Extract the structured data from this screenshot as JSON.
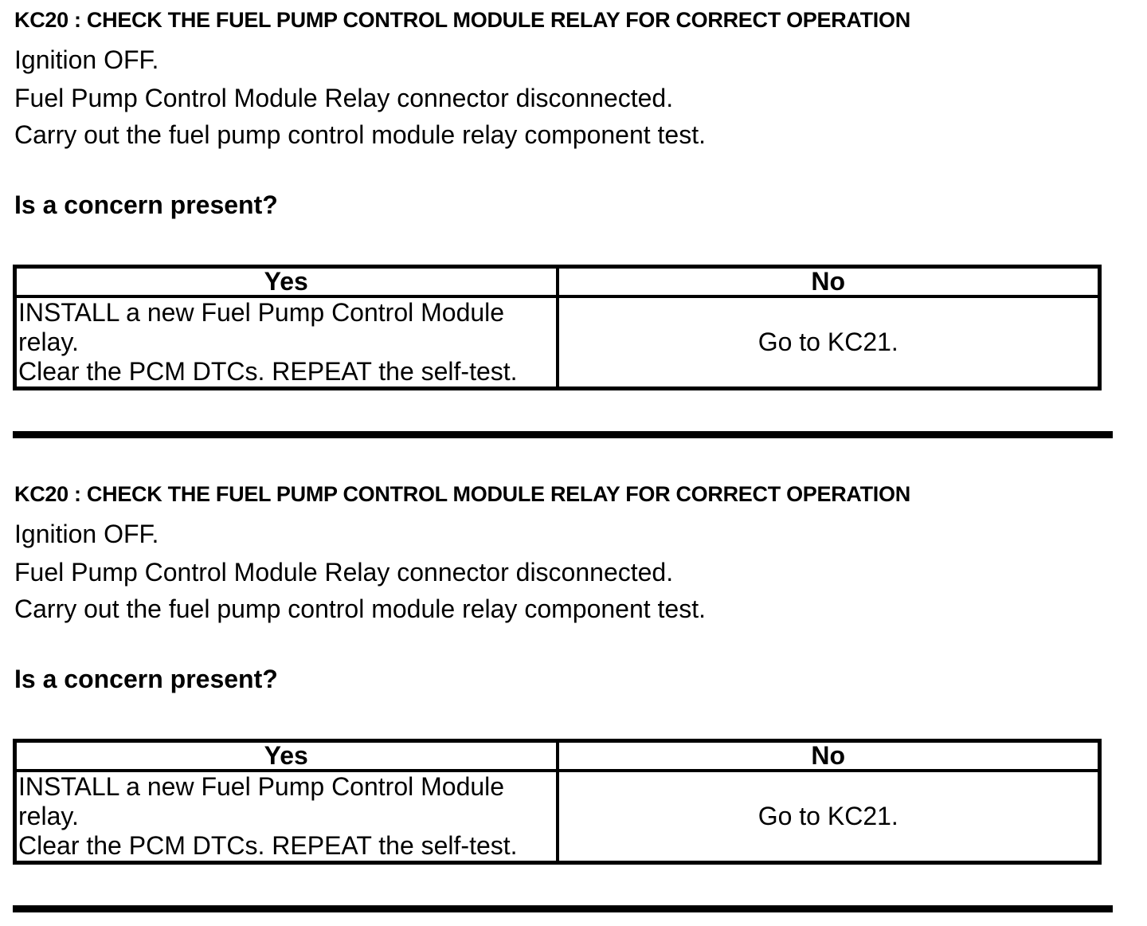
{
  "colors": {
    "text": "#000000",
    "background": "#ffffff",
    "border": "#000000"
  },
  "sections": [
    {
      "heading": "KC20 : CHECK THE FUEL PUMP CONTROL MODULE RELAY FOR CORRECT OPERATION",
      "steps": [
        "Ignition OFF.",
        "Fuel Pump Control Module Relay connector disconnected.",
        "Carry out the fuel pump control module relay component test."
      ],
      "question": "Is a concern present?",
      "table": {
        "yes_header": "Yes",
        "no_header": "No",
        "yes_cell_lines": [
          "INSTALL a new Fuel Pump Control Module relay.",
          "Clear the PCM DTCs. REPEAT the self-test."
        ],
        "no_cell": "Go to KC21."
      }
    },
    {
      "heading": "KC20 : CHECK THE FUEL PUMP CONTROL MODULE RELAY FOR CORRECT OPERATION",
      "steps": [
        "Ignition OFF.",
        "Fuel Pump Control Module Relay connector disconnected.",
        "Carry out the fuel pump control module relay component test."
      ],
      "question": "Is a concern present?",
      "table": {
        "yes_header": "Yes",
        "no_header": "No",
        "yes_cell_lines": [
          "INSTALL a new Fuel Pump Control Module relay.",
          "Clear the PCM DTCs. REPEAT the self-test."
        ],
        "no_cell": "Go to KC21."
      }
    }
  ]
}
